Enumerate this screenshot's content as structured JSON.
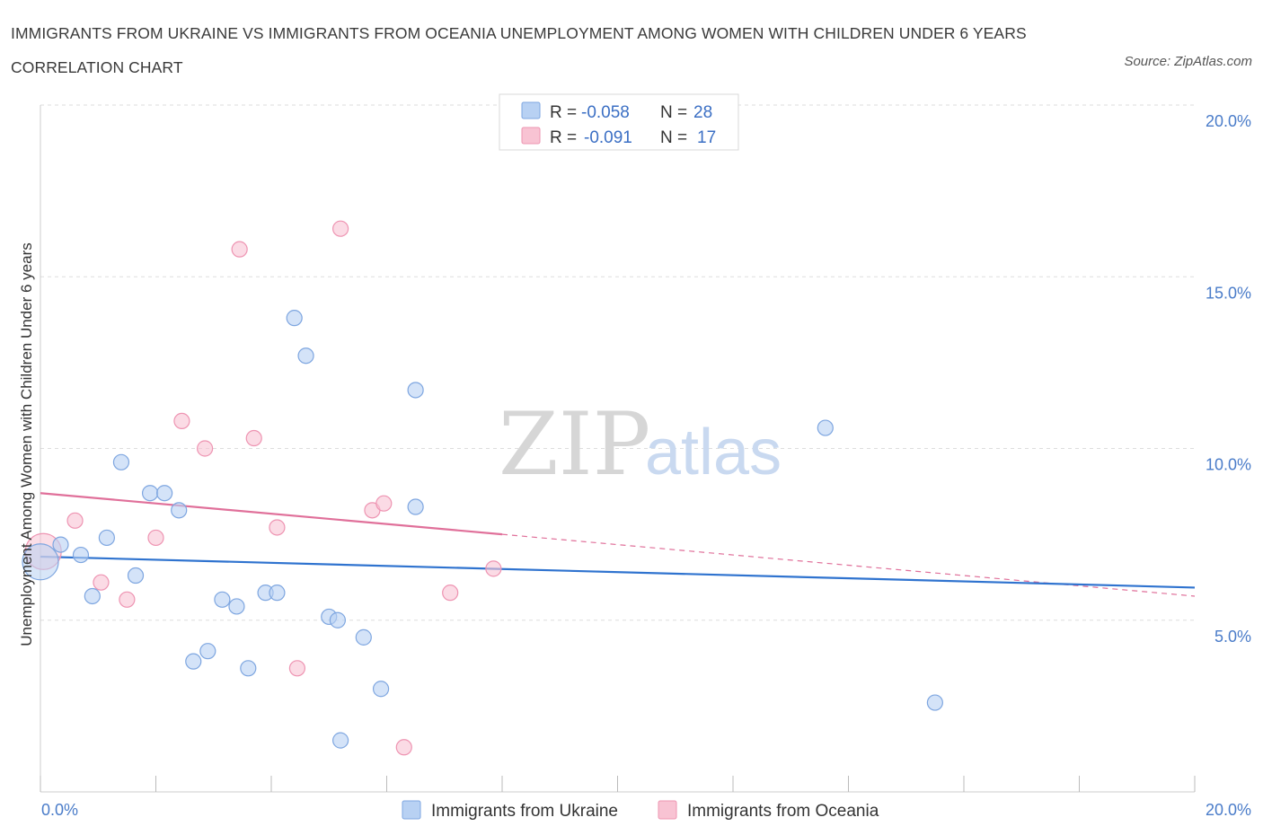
{
  "header": {
    "title": "IMMIGRANTS FROM UKRAINE VS IMMIGRANTS FROM OCEANIA UNEMPLOYMENT AMONG WOMEN WITH CHILDREN UNDER 6 YEARS CORRELATION CHART",
    "source": "Source: ZipAtlas.com"
  },
  "watermark": {
    "zip": "ZIP",
    "atlas": "atlas"
  },
  "legend": {
    "rows": [
      {
        "r_label": "R =",
        "r_value": "-0.058",
        "n_label": "N =",
        "n_value": "28"
      },
      {
        "r_label": "R =",
        "r_value": "-0.091",
        "n_label": "N =",
        "n_value": "17"
      }
    ]
  },
  "colors": {
    "ukraine_fill": "#b8d1f3",
    "ukraine_stroke": "#7ea6e0",
    "ukraine_line": "#2f73cf",
    "oceania_fill": "#f8c3d3",
    "oceania_stroke": "#ee94b2",
    "oceania_line": "#e0709a",
    "grid": "#dddddd",
    "tick_text": "#4a7cc9"
  },
  "chart_data": {
    "type": "scatter",
    "title": "IMMIGRANTS FROM UKRAINE VS IMMIGRANTS FROM OCEANIA UNEMPLOYMENT AMONG WOMEN WITH CHILDREN UNDER 6 YEARS CORRELATION CHART",
    "xlabel": "",
    "ylabel": "Unemployment Among Women with Children Under 6 years",
    "xlim": [
      0,
      20
    ],
    "ylim": [
      0,
      20
    ],
    "x_tick_labels": [
      "0.0%",
      "20.0%"
    ],
    "y_ticks": [
      5,
      10,
      15,
      20
    ],
    "y_tick_labels": [
      "5.0%",
      "10.0%",
      "15.0%",
      "20.0%"
    ],
    "grid": true,
    "legend_position": "bottom-center",
    "series": [
      {
        "name": "Immigrants from Ukraine",
        "r": -0.058,
        "n": 28,
        "trend": {
          "x": [
            0,
            20
          ],
          "y": [
            6.85,
            5.95
          ]
        },
        "points": [
          {
            "x": 0.0,
            "y": 6.7,
            "big": true
          },
          {
            "x": 0.35,
            "y": 7.2
          },
          {
            "x": 0.7,
            "y": 6.9
          },
          {
            "x": 0.9,
            "y": 5.7
          },
          {
            "x": 1.15,
            "y": 7.4
          },
          {
            "x": 1.4,
            "y": 9.6
          },
          {
            "x": 1.65,
            "y": 6.3
          },
          {
            "x": 1.9,
            "y": 8.7
          },
          {
            "x": 2.15,
            "y": 8.7
          },
          {
            "x": 2.4,
            "y": 8.2
          },
          {
            "x": 2.65,
            "y": 3.8
          },
          {
            "x": 2.9,
            "y": 4.1
          },
          {
            "x": 3.15,
            "y": 5.6
          },
          {
            "x": 3.4,
            "y": 5.4
          },
          {
            "x": 3.6,
            "y": 3.6
          },
          {
            "x": 3.9,
            "y": 5.8
          },
          {
            "x": 4.1,
            "y": 5.8
          },
          {
            "x": 4.4,
            "y": 13.8
          },
          {
            "x": 4.6,
            "y": 12.7
          },
          {
            "x": 5.0,
            "y": 5.1
          },
          {
            "x": 5.15,
            "y": 5.0
          },
          {
            "x": 5.2,
            "y": 1.5
          },
          {
            "x": 5.6,
            "y": 4.5
          },
          {
            "x": 5.9,
            "y": 3.0
          },
          {
            "x": 6.5,
            "y": 11.7
          },
          {
            "x": 6.5,
            "y": 8.3
          },
          {
            "x": 13.6,
            "y": 10.6
          },
          {
            "x": 15.5,
            "y": 2.6
          }
        ]
      },
      {
        "name": "Immigrants from Oceania",
        "r": -0.091,
        "n": 17,
        "trend": {
          "x": [
            0,
            8
          ],
          "y": [
            8.7,
            7.5
          ]
        },
        "trend_dashed": {
          "x": [
            8,
            20
          ],
          "y": [
            7.5,
            5.7
          ]
        },
        "points": [
          {
            "x": 0.05,
            "y": 7.0,
            "big": true
          },
          {
            "x": 0.6,
            "y": 7.9
          },
          {
            "x": 1.05,
            "y": 6.1
          },
          {
            "x": 1.5,
            "y": 5.6
          },
          {
            "x": 2.0,
            "y": 7.4
          },
          {
            "x": 2.45,
            "y": 10.8
          },
          {
            "x": 2.85,
            "y": 10.0
          },
          {
            "x": 3.45,
            "y": 15.8
          },
          {
            "x": 3.7,
            "y": 10.3
          },
          {
            "x": 4.1,
            "y": 7.7
          },
          {
            "x": 4.45,
            "y": 3.6
          },
          {
            "x": 5.2,
            "y": 16.4
          },
          {
            "x": 5.75,
            "y": 8.2
          },
          {
            "x": 5.95,
            "y": 8.4
          },
          {
            "x": 6.3,
            "y": 1.3
          },
          {
            "x": 7.1,
            "y": 5.8
          },
          {
            "x": 7.85,
            "y": 6.5
          }
        ]
      }
    ]
  }
}
